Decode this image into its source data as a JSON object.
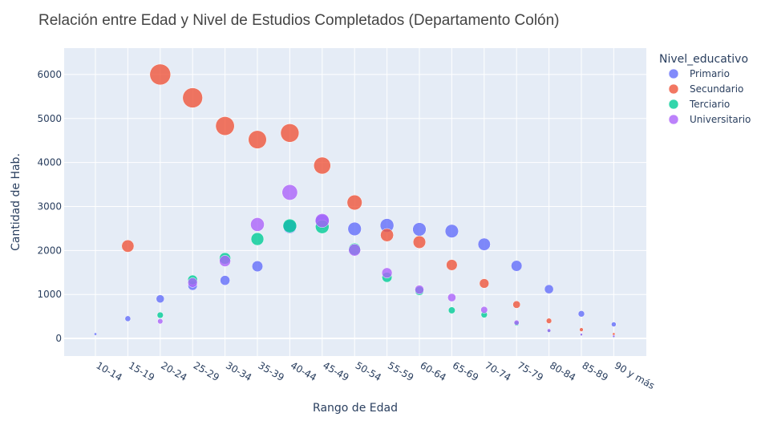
{
  "chart_data": {
    "type": "scatter",
    "title": "Relación entre Edad y Nivel de Estudios Completados (Departamento Colón)",
    "xlabel": "Rango de Edad",
    "ylabel": "Cantidad de Hab.",
    "legend_title": "Nivel_educativo",
    "legend_position": "right",
    "grid": true,
    "ylim": [
      -400,
      6600
    ],
    "yticks": [
      0,
      1000,
      2000,
      3000,
      4000,
      5000,
      6000
    ],
    "yticklabels": [
      "0",
      "1000",
      "2000",
      "3000",
      "4000",
      "5000",
      "6000"
    ],
    "categories": [
      "10-14",
      "15-19",
      "20-24",
      "25-29",
      "30-34",
      "35-39",
      "40-44",
      "45-49",
      "50-54",
      "55-59",
      "60-64",
      "65-69",
      "70-74",
      "75-79",
      "80-84",
      "85-89",
      "90 y más"
    ],
    "size_max_value": 6000,
    "series": [
      {
        "name": "Primario",
        "color": "#636efa",
        "values": [
          100,
          450,
          900,
          1200,
          1320,
          1640,
          2540,
          2660,
          2490,
          2570,
          2480,
          2440,
          2140,
          1650,
          1120,
          560,
          320
        ]
      },
      {
        "name": "Secundario",
        "color": "#ef553b",
        "values": [
          null,
          2100,
          6000,
          5470,
          4830,
          4520,
          4670,
          3930,
          3090,
          2350,
          2190,
          1670,
          1250,
          770,
          400,
          200,
          100
        ]
      },
      {
        "name": "Terciario",
        "color": "#00cc96",
        "values": [
          null,
          null,
          530,
          1330,
          1820,
          2260,
          2560,
          2540,
          2030,
          1390,
          1080,
          640,
          540,
          340,
          170,
          80,
          40
        ]
      },
      {
        "name": "Universitario",
        "color": "#ab63fa",
        "values": [
          null,
          null,
          390,
          1270,
          1760,
          2590,
          3320,
          2680,
          2010,
          1490,
          1110,
          930,
          650,
          360,
          180,
          90,
          50
        ]
      }
    ]
  }
}
